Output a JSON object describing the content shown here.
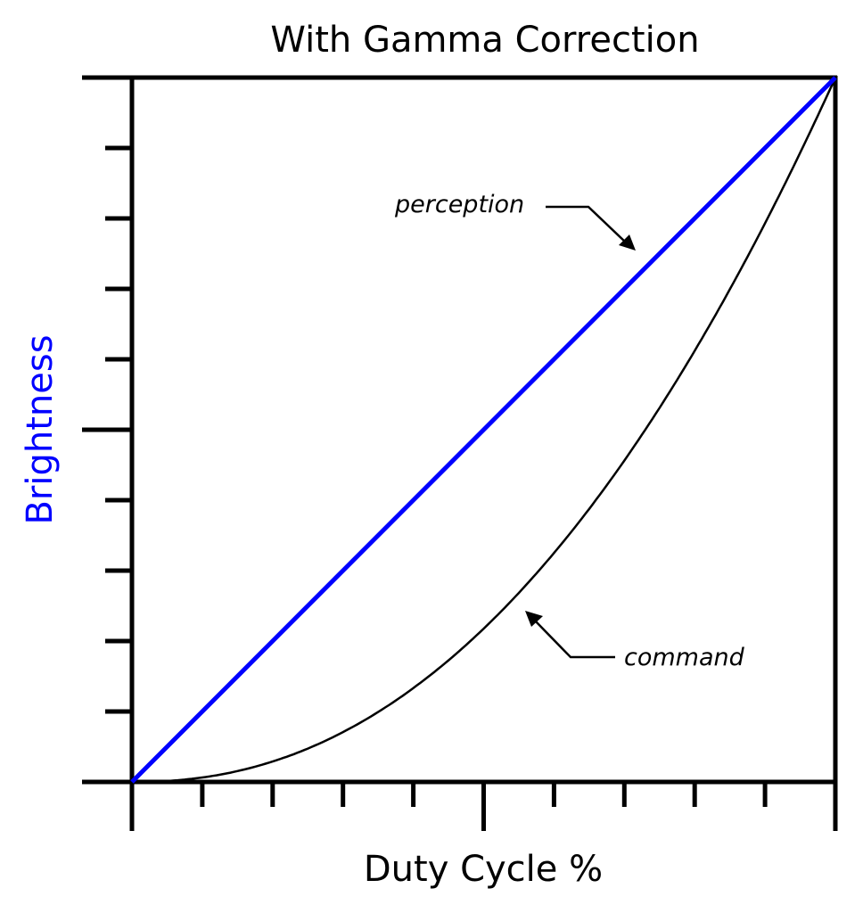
{
  "chart_data": {
    "type": "line",
    "title": "With Gamma Correction",
    "xlabel": "Duty Cycle %",
    "ylabel": "Brightness",
    "ylabel_color": "#0000ff",
    "xlim": [
      0,
      100
    ],
    "ylim": [
      0,
      100
    ],
    "grid": false,
    "legend": "none (inline annotations with arrows)",
    "x_ticks": {
      "count": 11,
      "major_at": [
        0,
        50,
        100
      ],
      "labels": []
    },
    "y_ticks": {
      "count": 11,
      "major_at": [
        50
      ],
      "labels": []
    },
    "series": [
      {
        "name": "perception",
        "color": "#0000ff",
        "x": [
          0,
          10,
          20,
          30,
          40,
          50,
          60,
          70,
          80,
          90,
          100
        ],
        "values": [
          0,
          10,
          20,
          30,
          40,
          50,
          60,
          70,
          80,
          90,
          100
        ]
      },
      {
        "name": "command",
        "color": "#000000",
        "x": [
          0,
          10,
          20,
          30,
          40,
          50,
          60,
          70,
          80,
          90,
          100
        ],
        "values": [
          0,
          0.6,
          2.9,
          7.1,
          13.3,
          21.8,
          32.5,
          45.6,
          61.2,
          79.3,
          100
        ]
      }
    ],
    "annotations": [
      {
        "text": "perception",
        "points_to": "perception"
      },
      {
        "text": "command",
        "points_to": "command"
      }
    ]
  },
  "labels": {
    "title": "With Gamma Correction",
    "xlabel": "Duty Cycle %",
    "ylabel": "Brightness",
    "perception": "perception",
    "command": "command"
  }
}
